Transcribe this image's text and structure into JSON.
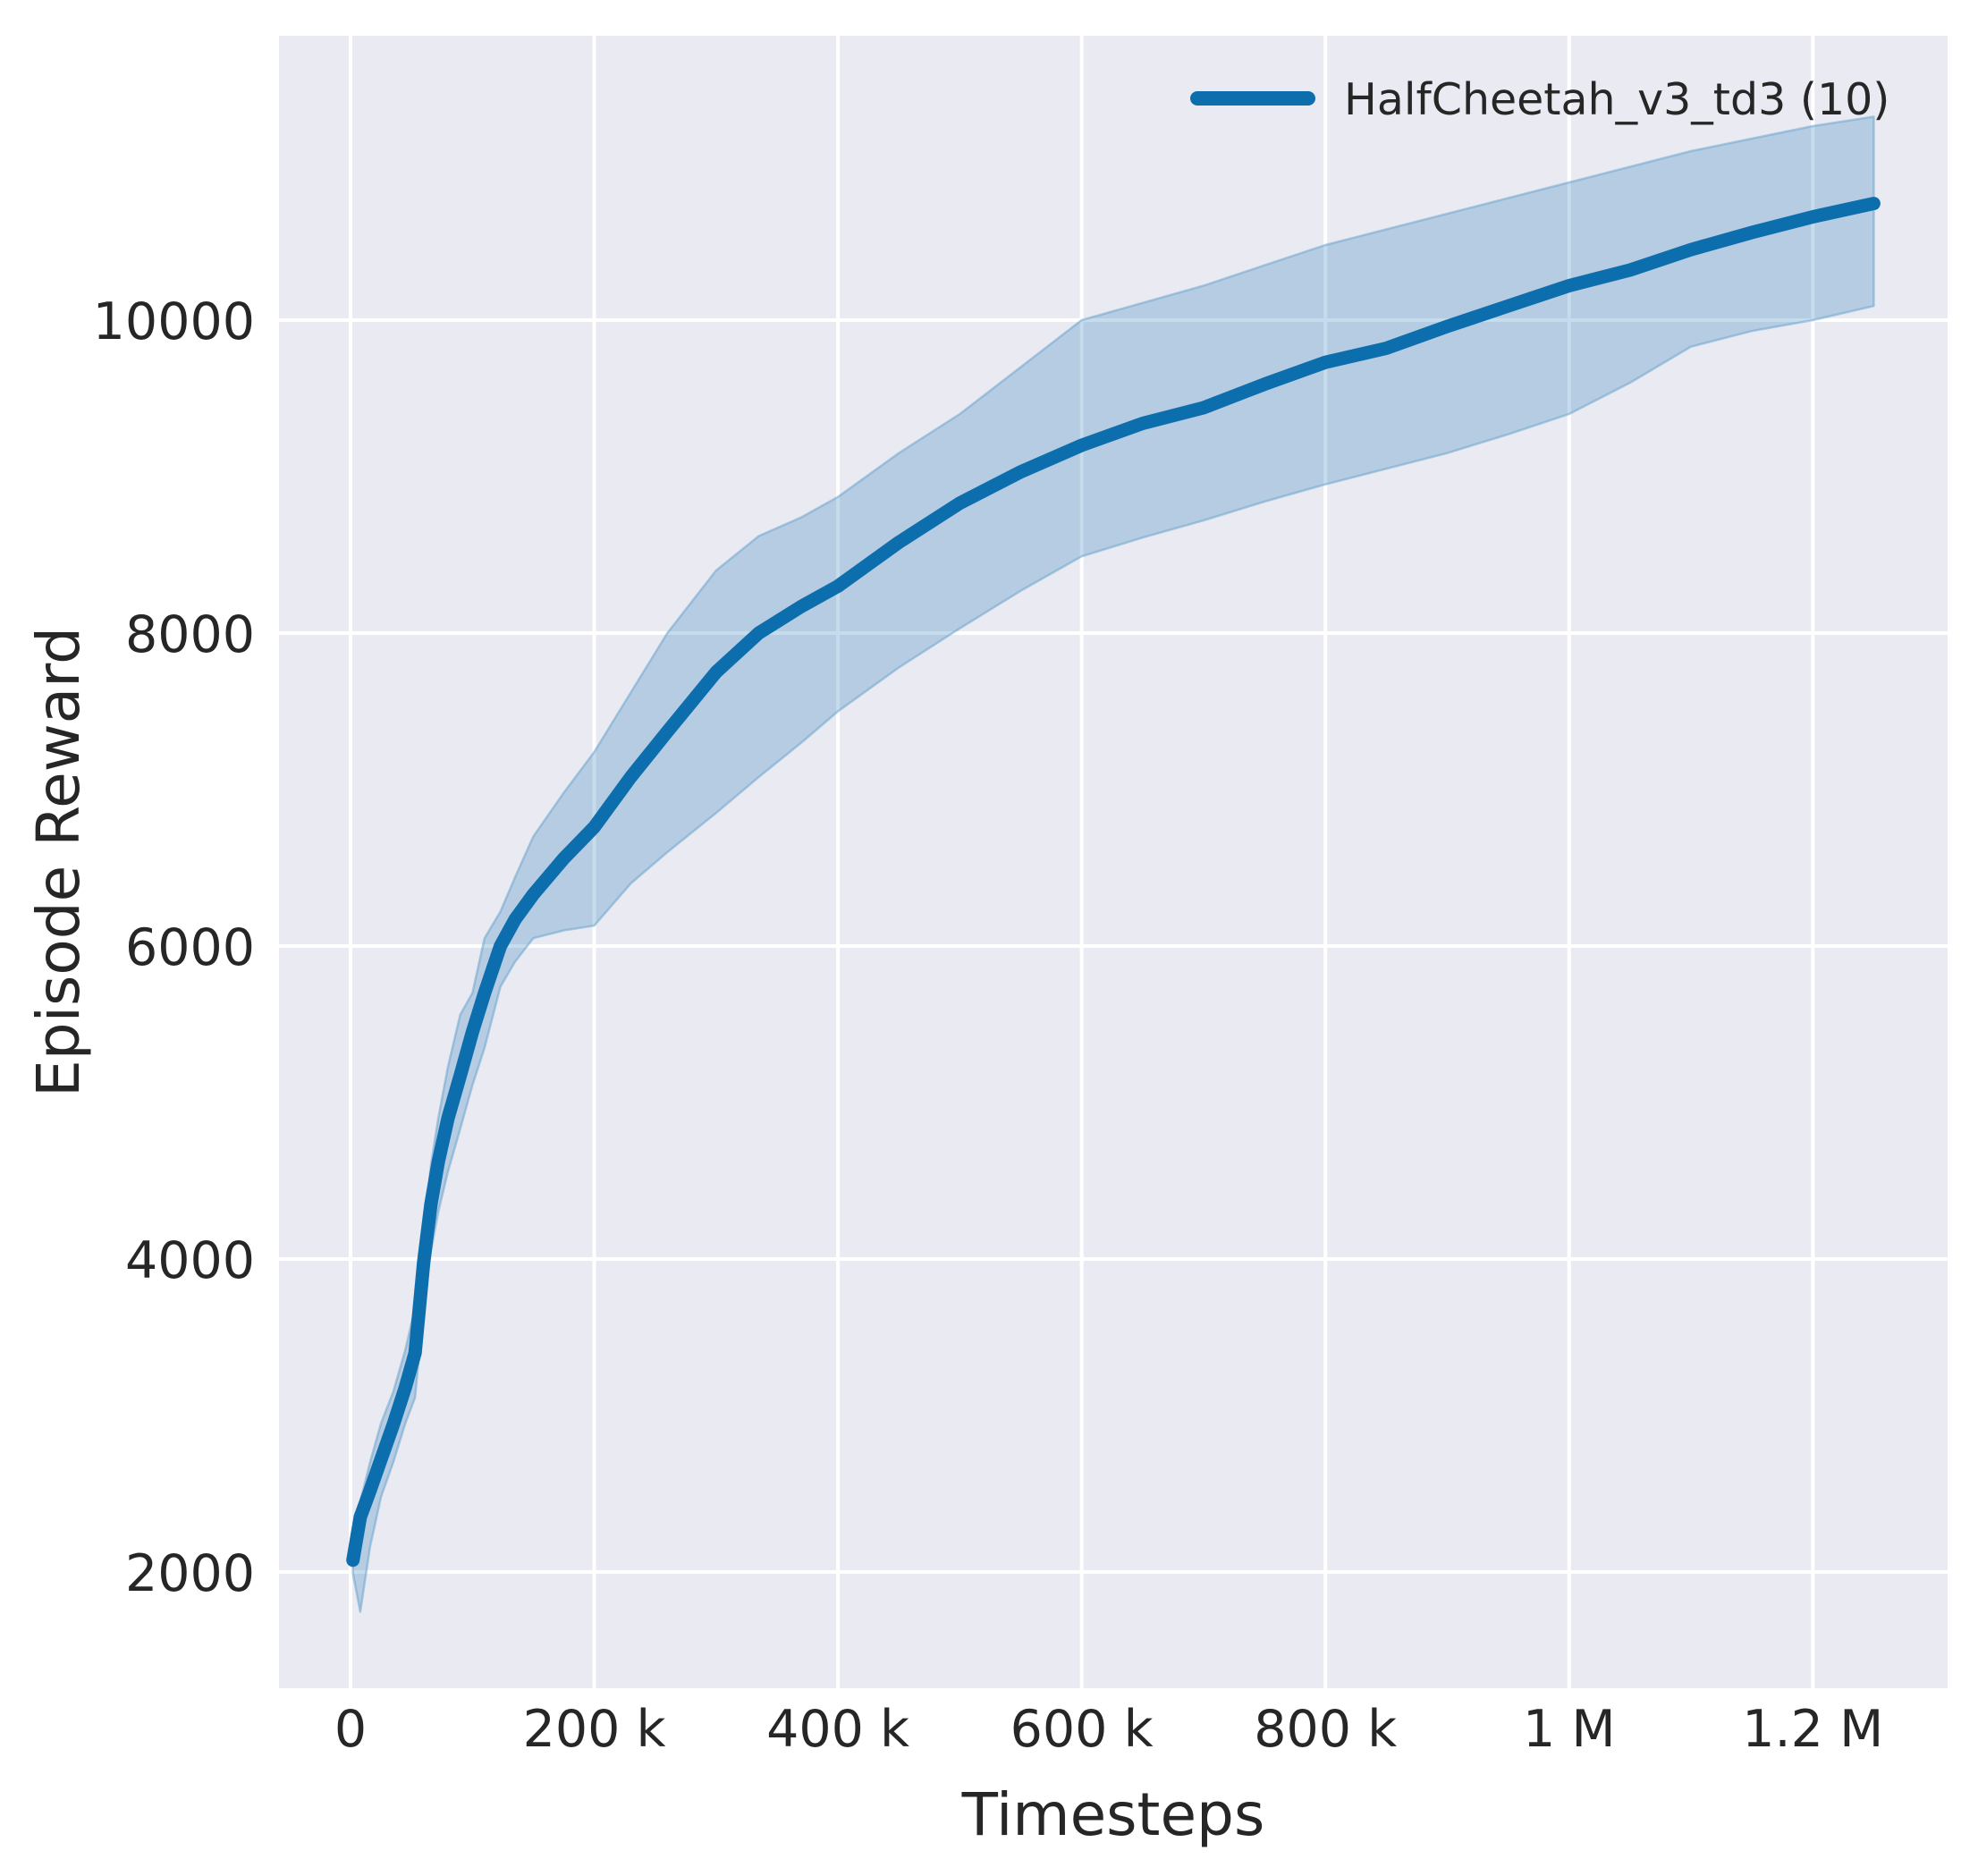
{
  "figure": {
    "background": "#ffffff"
  },
  "chart_data": {
    "type": "line",
    "title": "",
    "xlabel": "Timesteps",
    "ylabel": "Episode Reward",
    "grid": true,
    "legend_position": "upper right",
    "legend": [
      {
        "label": "HalfCheetah_v3_td3 (10)",
        "color": "#0d6eae"
      }
    ],
    "xlim": [
      -58700,
      1310600
    ],
    "ylim": [
      1257,
      11817
    ],
    "x_ticks": [
      {
        "value": 0,
        "label": "0"
      },
      {
        "value": 200000,
        "label": "200 k"
      },
      {
        "value": 400000,
        "label": "400 k"
      },
      {
        "value": 600000,
        "label": "600 k"
      },
      {
        "value": 800000,
        "label": "800 k"
      },
      {
        "value": 1000000,
        "label": "1 M"
      },
      {
        "value": 1200000,
        "label": "1.2 M"
      }
    ],
    "y_ticks": [
      {
        "value": 2000,
        "label": "2000"
      },
      {
        "value": 4000,
        "label": "4000"
      },
      {
        "value": 6000,
        "label": "6000"
      },
      {
        "value": 8000,
        "label": "8000"
      },
      {
        "value": 10000,
        "label": "10000"
      }
    ],
    "series": [
      {
        "name": "HalfCheetah_v3_td3 (10)",
        "x": [
          2000,
          8000,
          16000,
          25000,
          35000,
          45000,
          53000,
          60000,
          66000,
          72000,
          80000,
          90000,
          100000,
          110000,
          123000,
          135000,
          150000,
          175000,
          200000,
          230000,
          260000,
          300000,
          335000,
          370000,
          400000,
          450000,
          500000,
          550000,
          600000,
          650000,
          700000,
          750000,
          800000,
          850000,
          900000,
          950000,
          1000000,
          1050000,
          1100000,
          1150000,
          1200000,
          1250000
        ],
        "mean": [
          2075,
          2350,
          2520,
          2720,
          2940,
          3180,
          3400,
          3980,
          4350,
          4620,
          4900,
          5170,
          5450,
          5700,
          6000,
          6170,
          6330,
          6560,
          6760,
          7080,
          7370,
          7750,
          8000,
          8170,
          8300,
          8580,
          8830,
          9030,
          9200,
          9340,
          9440,
          9590,
          9730,
          9820,
          9960,
          10090,
          10220,
          10320,
          10450,
          10560,
          10660,
          10745
        ],
        "band_low": [
          1990,
          1745,
          2160,
          2480,
          2700,
          2950,
          3115,
          3700,
          4050,
          4300,
          4560,
          4830,
          5110,
          5350,
          5740,
          5900,
          6050,
          6100,
          6130,
          6400,
          6600,
          6850,
          7080,
          7300,
          7500,
          7780,
          8030,
          8270,
          8490,
          8610,
          8720,
          8840,
          8950,
          9050,
          9150,
          9270,
          9400,
          9600,
          9830,
          9930,
          10000,
          10090
        ],
        "band_high": [
          2160,
          2450,
          2700,
          2950,
          3150,
          3420,
          3690,
          4180,
          4600,
          4900,
          5230,
          5560,
          5700,
          6050,
          6220,
          6440,
          6700,
          6980,
          7240,
          7620,
          8000,
          8400,
          8620,
          8740,
          8870,
          9150,
          9400,
          9700,
          10000,
          10110,
          10220,
          10350,
          10480,
          10580,
          10680,
          10780,
          10880,
          10980,
          11080,
          11160,
          11240,
          11300
        ]
      }
    ],
    "colors": {
      "axes_background": "#eaeaf2",
      "gridline": "#ffffff",
      "line": "#0d6eae",
      "band_fill": "#1f77b4",
      "band_edge": "#6ea6cd",
      "text": "#262626"
    }
  }
}
